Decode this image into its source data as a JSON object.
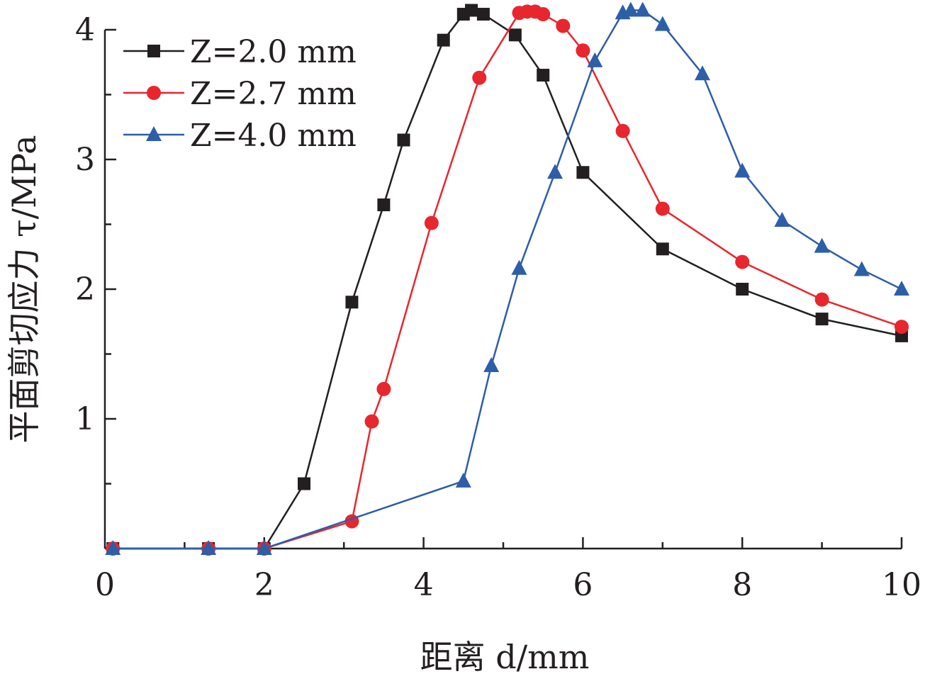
{
  "chart_data": {
    "type": "line",
    "xlabel": "距离 d/mm",
    "ylabel": "平面剪切应力 τ/MPa",
    "xlim": [
      0,
      10
    ],
    "ylim": [
      0,
      4
    ],
    "x_ticks": [
      "0",
      "2",
      "4",
      "6",
      "8",
      "10"
    ],
    "y_ticks": [
      "1",
      "2",
      "3",
      "4"
    ],
    "legend_position": "top-left",
    "series": [
      {
        "name": "Z=2.0 mm",
        "color": "#231f20",
        "marker": "square",
        "x": [
          0.1,
          1.3,
          2.0,
          2.5,
          3.1,
          3.5,
          3.75,
          4.25,
          4.5,
          4.6,
          4.75,
          5.15,
          5.5,
          6.0,
          7.0,
          8.0,
          9.0,
          10.0
        ],
        "y": [
          0.0,
          0.0,
          0.0,
          0.5,
          1.9,
          2.65,
          3.15,
          3.92,
          4.12,
          4.15,
          4.12,
          3.96,
          3.65,
          2.9,
          2.31,
          2.0,
          1.77,
          1.64
        ]
      },
      {
        "name": "Z=2.7 mm",
        "color": "#e8262d",
        "marker": "circle",
        "x": [
          0.1,
          1.3,
          2.0,
          3.1,
          3.35,
          3.5,
          4.1,
          4.7,
          5.2,
          5.3,
          5.4,
          5.5,
          5.75,
          6.0,
          6.5,
          7.0,
          8.0,
          9.0,
          10.0
        ],
        "y": [
          0.0,
          0.0,
          0.0,
          0.21,
          0.98,
          1.23,
          2.51,
          3.63,
          4.13,
          4.14,
          4.14,
          4.12,
          4.03,
          3.84,
          3.22,
          2.62,
          2.21,
          1.92,
          1.71
        ]
      },
      {
        "name": "Z=4.0 mm",
        "color": "#2d5ea8",
        "marker": "triangle",
        "x": [
          0.1,
          1.3,
          2.0,
          4.5,
          4.85,
          5.2,
          5.65,
          6.15,
          6.5,
          6.6,
          6.75,
          7.0,
          7.5,
          8.0,
          8.5,
          9.0,
          9.5,
          10.0
        ],
        "y": [
          0.0,
          0.0,
          0.0,
          0.52,
          1.41,
          2.16,
          2.9,
          3.76,
          4.13,
          4.15,
          4.15,
          4.04,
          3.66,
          2.91,
          2.53,
          2.33,
          2.15,
          2.0
        ]
      }
    ]
  }
}
